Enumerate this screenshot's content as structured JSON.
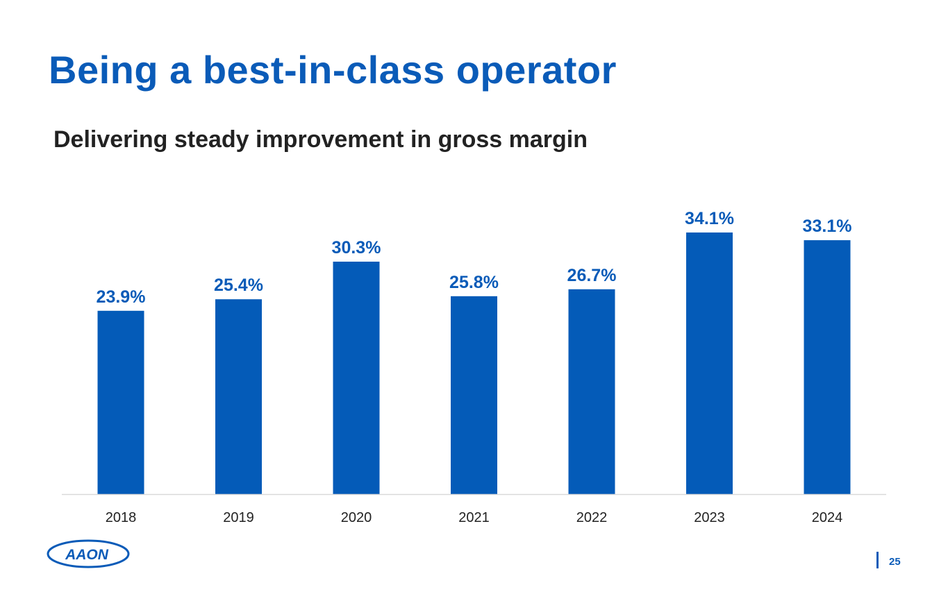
{
  "slide": {
    "title": "Being a best-in-class operator",
    "subtitle": "Delivering steady improvement in gross margin",
    "page_number": "25",
    "logo_text": "AAON"
  },
  "colors": {
    "brand": "#0a5bb8",
    "bar": "#045bb8",
    "axis": "#d9d9d9",
    "text_dark": "#222222"
  },
  "chart_data": {
    "type": "bar",
    "title": "Delivering steady improvement in gross margin",
    "categories": [
      "2018",
      "2019",
      "2020",
      "2021",
      "2022",
      "2023",
      "2024"
    ],
    "values": [
      23.9,
      25.4,
      30.3,
      25.8,
      26.7,
      34.1,
      33.1
    ],
    "data_labels": [
      "23.9%",
      "25.4%",
      "30.3%",
      "25.8%",
      "26.7%",
      "34.1%",
      "33.1%"
    ],
    "unit": "%",
    "xlabel": "",
    "ylabel": "",
    "ylim": [
      0,
      34.1
    ],
    "grid": false,
    "legend": "none"
  }
}
